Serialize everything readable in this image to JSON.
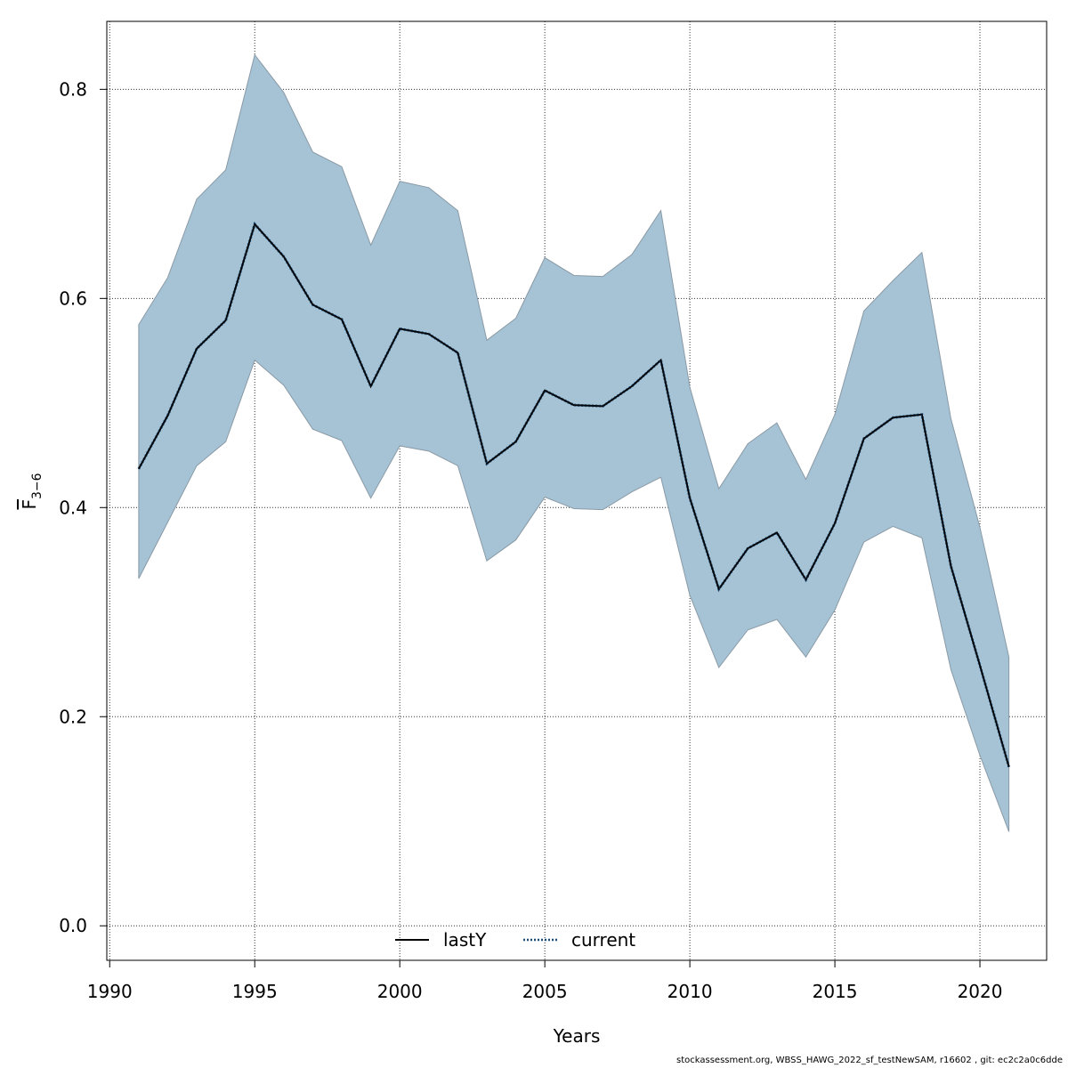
{
  "chart_data": {
    "type": "line",
    "title": "",
    "xlabel": "Years",
    "ylabel_main": "F",
    "ylabel_sub": "3−6",
    "xlim": [
      1989.9,
      2022.3
    ],
    "ylim": [
      -0.033,
      0.865
    ],
    "x_ticks": [
      1990,
      1995,
      2000,
      2005,
      2010,
      2015,
      2020
    ],
    "y_ticks": [
      0.0,
      0.2,
      0.4,
      0.6,
      0.8
    ],
    "y_tick_labels": [
      "0.0",
      "0.2",
      "0.4",
      "0.6",
      "0.8"
    ],
    "grid": true,
    "years": [
      1991,
      1992,
      1993,
      1994,
      1995,
      1996,
      1997,
      1998,
      1999,
      2000,
      2001,
      2002,
      2003,
      2004,
      2005,
      2006,
      2007,
      2008,
      2009,
      2010,
      2011,
      2012,
      2013,
      2014,
      2015,
      2016,
      2017,
      2018,
      2019,
      2020,
      2021
    ],
    "series": [
      {
        "name": "current",
        "style": "dotted",
        "values": [
          0.437,
          0.488,
          0.552,
          0.579,
          0.671,
          0.64,
          0.594,
          0.58,
          0.516,
          0.571,
          0.566,
          0.548,
          0.442,
          0.463,
          0.512,
          0.498,
          0.497,
          0.516,
          0.541,
          0.409,
          0.322,
          0.361,
          0.376,
          0.331,
          0.385,
          0.466,
          0.486,
          0.489,
          0.344,
          0.249,
          0.152
        ],
        "lower": [
          0.332,
          0.386,
          0.44,
          0.463,
          0.541,
          0.517,
          0.475,
          0.464,
          0.409,
          0.459,
          0.454,
          0.44,
          0.349,
          0.369,
          0.41,
          0.399,
          0.398,
          0.415,
          0.429,
          0.316,
          0.247,
          0.283,
          0.293,
          0.257,
          0.302,
          0.367,
          0.382,
          0.371,
          0.245,
          0.163,
          0.09
        ],
        "upper": [
          0.575,
          0.62,
          0.695,
          0.723,
          0.833,
          0.797,
          0.74,
          0.726,
          0.651,
          0.712,
          0.706,
          0.684,
          0.56,
          0.581,
          0.639,
          0.622,
          0.621,
          0.642,
          0.684,
          0.515,
          0.418,
          0.461,
          0.481,
          0.427,
          0.489,
          0.588,
          0.617,
          0.644,
          0.485,
          0.381,
          0.257
        ]
      },
      {
        "name": "lastY",
        "style": "solid",
        "values": [
          0.437,
          0.488,
          0.552,
          0.579,
          0.671,
          0.64,
          0.594,
          0.58,
          0.516,
          0.571,
          0.566,
          0.548,
          0.442,
          0.463,
          0.512,
          0.498,
          0.497,
          0.516,
          0.541,
          0.409,
          0.322,
          0.361,
          0.376,
          0.331,
          0.385,
          0.466,
          0.486,
          0.489,
          0.344,
          0.249,
          0.152
        ]
      }
    ],
    "legend": {
      "placement": "bottom-center",
      "entries": [
        {
          "name": "lastY",
          "style": "solid",
          "color": "#000000"
        },
        {
          "name": "current",
          "style": "dotted",
          "color": "#1f4e79"
        }
      ]
    },
    "colors": {
      "band": "#a5c3d5",
      "band_edge": "#8a9aa6",
      "current_line_outer": "#1f4e79",
      "current_line_inner": "#000000",
      "grid": "#333333"
    }
  },
  "footer": "stockassessment.org, WBSS_HAWG_2022_sf_testNewSAM, r16602 , git: ec2c2a0c6dde"
}
